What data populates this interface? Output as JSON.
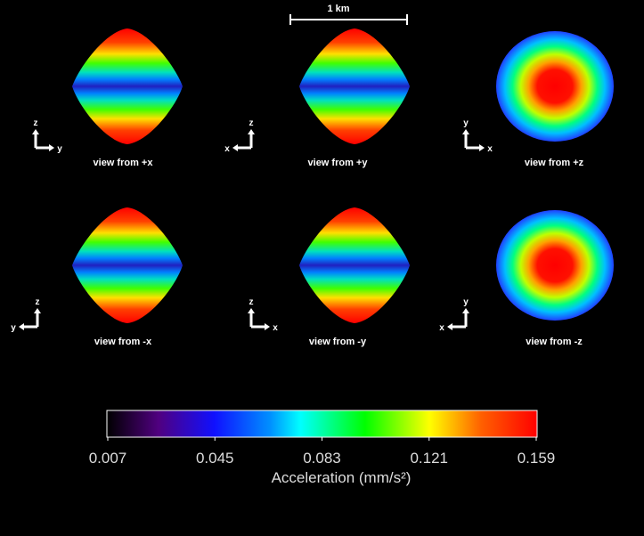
{
  "scale_bar": {
    "label": "1 km"
  },
  "views": [
    {
      "caption": "view from +x",
      "vertical_axis": "z",
      "horizontal_axis": "y"
    },
    {
      "caption": "view from +y",
      "vertical_axis": "z",
      "horizontal_axis": "x"
    },
    {
      "caption": "view from +z",
      "vertical_axis": "y",
      "horizontal_axis": "x"
    },
    {
      "caption": "view from -x",
      "vertical_axis": "z",
      "horizontal_axis": "y"
    },
    {
      "caption": "view from -y",
      "vertical_axis": "z",
      "horizontal_axis": "x"
    },
    {
      "caption": "view from -z",
      "vertical_axis": "y",
      "horizontal_axis": "x"
    }
  ],
  "colorbar": {
    "label": "Acceleration (mm/s²)",
    "lim": [
      0.007,
      0.159
    ],
    "ticks": [
      0.007,
      0.045,
      0.083,
      0.121,
      0.159
    ]
  }
}
